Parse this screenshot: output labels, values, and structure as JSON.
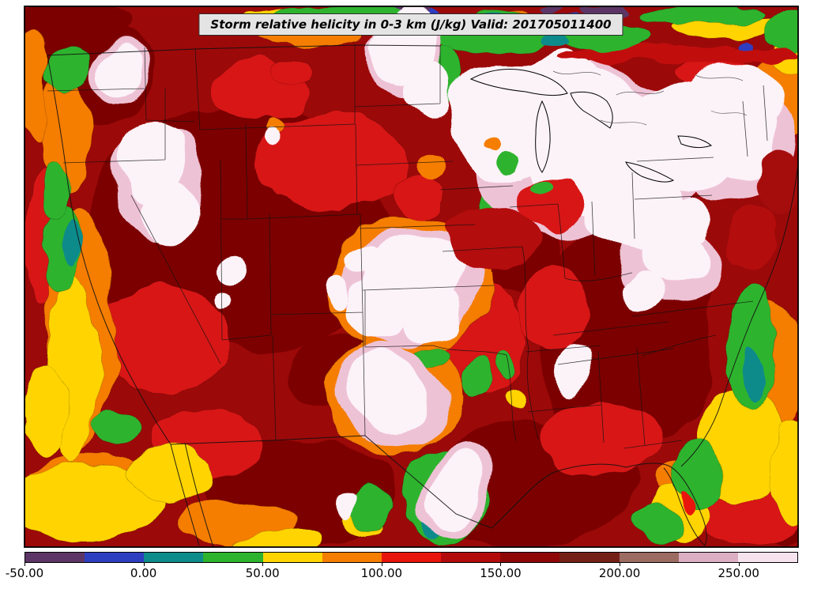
{
  "title": {
    "text": "Storm relative helicity in 0-3 km (J/kg) Valid: 201705011400"
  },
  "figure": {
    "background": "#ffffff",
    "frame_color": "#000000",
    "title_box_bg": "#e4e4e4"
  },
  "chart_data": {
    "type": "heatmap",
    "title": "Storm relative helicity in 0-3 km (J/kg)",
    "variable": "Storm relative helicity in 0-3 km",
    "units": "J/kg",
    "valid": "201705011400",
    "region": "Continental United States (CONUS) with state boundaries and coastlines",
    "legend_position": "bottom",
    "colorbar": {
      "orientation": "horizontal",
      "min": -50,
      "max": 275,
      "tick_labels": [
        "-50.00",
        "0.00",
        "50.00",
        "100.00",
        "150.00",
        "200.00",
        "250.00"
      ],
      "tick_values": [
        -50,
        0,
        50,
        100,
        150,
        200,
        250
      ],
      "levels": [
        -50,
        -25,
        0,
        25,
        50,
        75,
        100,
        125,
        150,
        175,
        200,
        225,
        250,
        275
      ],
      "colors": [
        "#5c3566",
        "#2d3ec1",
        "#0e8b8b",
        "#2db32d",
        "#ffd400",
        "#f57d00",
        "#e8150d",
        "#b30b0b",
        "#8f0606",
        "#752016",
        "#9c6b62",
        "#dcaec4",
        "#f6e3ee"
      ]
    },
    "approx_regions": [
      {
        "area": "Upper Midwest and Great Lakes",
        "approx_value": "> 250 J/kg"
      },
      {
        "area": "Northeast US",
        "approx_value": "> 250 J/kg"
      },
      {
        "area": "Central High Plains (CO/NE/KS)",
        "approx_value": "> 250 J/kg"
      },
      {
        "area": "Texas Panhandle and central Texas",
        "approx_value": "> 250 J/kg"
      },
      {
        "area": "Great Basin patches (ID/NV/UT)",
        "approx_value": "> 250 J/kg"
      },
      {
        "area": "Most of the interior US",
        "approx_value": "100 - 200 J/kg"
      },
      {
        "area": "West Coast, Gulf fringe, Southeast Atlantic coast",
        "approx_value": "0 - 75 J/kg"
      },
      {
        "area": "Southern Canada band and scattered northern spots",
        "approx_value": "-50 - 25 J/kg"
      }
    ]
  }
}
